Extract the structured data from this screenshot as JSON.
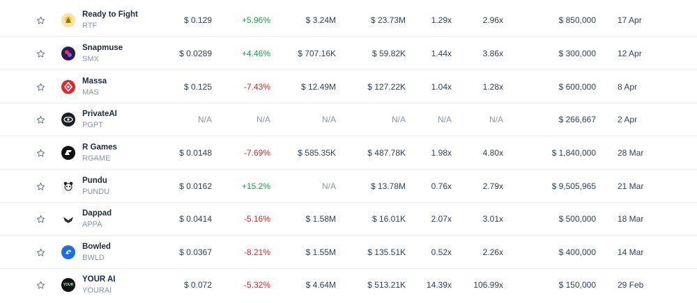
{
  "colors": {
    "positive": "#16a34a",
    "negative": "#dc2626",
    "muted": "#8a94a6"
  },
  "rows": [
    {
      "name": "Ready to Fight",
      "symbol": "RTF",
      "logo_icon": "rtf-logo-icon",
      "price": "$ 0.129",
      "change": "+5.96%",
      "change_dir": "pos",
      "volume": "$ 3.24M",
      "market_cap": "$ 23.73M",
      "roi_1": "1.29x",
      "roi_2": "2.96x",
      "raised": "$ 850,000",
      "date": "17 Apr"
    },
    {
      "name": "Snapmuse",
      "symbol": "SMX",
      "logo_icon": "snapmuse-logo-icon",
      "price": "$ 0.0289",
      "change": "+4.46%",
      "change_dir": "pos",
      "volume": "$ 707.16K",
      "market_cap": "$ 59.82K",
      "roi_1": "1.44x",
      "roi_2": "3.86x",
      "raised": "$ 300,000",
      "date": "12 Apr"
    },
    {
      "name": "Massa",
      "symbol": "MAS",
      "logo_icon": "massa-logo-icon",
      "price": "$ 0.125",
      "change": "-7.43%",
      "change_dir": "neg",
      "volume": "$ 12.49M",
      "market_cap": "$ 127.22K",
      "roi_1": "1.04x",
      "roi_2": "1.28x",
      "raised": "$ 600,000",
      "date": "8 Apr"
    },
    {
      "name": "PrivateAI",
      "symbol": "PGPT",
      "logo_icon": "privateai-logo-icon",
      "price": "N/A",
      "change": "N/A",
      "change_dir": "na",
      "volume": "N/A",
      "market_cap": "N/A",
      "roi_1": "N/A",
      "roi_2": "N/A",
      "raised": "$ 266,667",
      "date": "2 Apr"
    },
    {
      "name": "R Games",
      "symbol": "RGAME",
      "logo_icon": "rgames-logo-icon",
      "price": "$ 0.0148",
      "change": "-7.69%",
      "change_dir": "neg",
      "volume": "$ 585.35K",
      "market_cap": "$ 487.78K",
      "roi_1": "1.98x",
      "roi_2": "4.80x",
      "raised": "$ 1,840,000",
      "date": "28 Mar"
    },
    {
      "name": "Pundu",
      "symbol": "PUNDU",
      "logo_icon": "pundu-logo-icon",
      "price": "$ 0.0162",
      "change": "+15.2%",
      "change_dir": "pos",
      "volume": "N/A",
      "market_cap": "$ 13.78M",
      "roi_1": "0.76x",
      "roi_2": "2.79x",
      "raised": "$ 9,505,965",
      "date": "21 Mar"
    },
    {
      "name": "Dappad",
      "symbol": "APPA",
      "logo_icon": "dappad-logo-icon",
      "price": "$ 0.0414",
      "change": "-5.16%",
      "change_dir": "neg",
      "volume": "$ 1.58M",
      "market_cap": "$ 16.01K",
      "roi_1": "2.07x",
      "roi_2": "3.01x",
      "raised": "$ 500,000",
      "date": "18 Mar"
    },
    {
      "name": "Bowled",
      "symbol": "BWLD",
      "logo_icon": "bowled-logo-icon",
      "price": "$ 0.0367",
      "change": "-8.21%",
      "change_dir": "neg",
      "volume": "$ 1.55M",
      "market_cap": "$ 135.51K",
      "roi_1": "0.52x",
      "roi_2": "2.26x",
      "raised": "$ 400,000",
      "date": "14 Mar"
    },
    {
      "name": "YOUR AI",
      "symbol": "YOURAI",
      "logo_icon": "yourai-logo-icon",
      "logo_text": "YOUR",
      "price": "$ 0.072",
      "change": "-5.32%",
      "change_dir": "neg",
      "volume": "$ 4.64M",
      "market_cap": "$ 513.21K",
      "roi_1": "14.39x",
      "roi_2": "106.99x",
      "raised": "$ 150,000",
      "date": "29 Feb"
    }
  ]
}
